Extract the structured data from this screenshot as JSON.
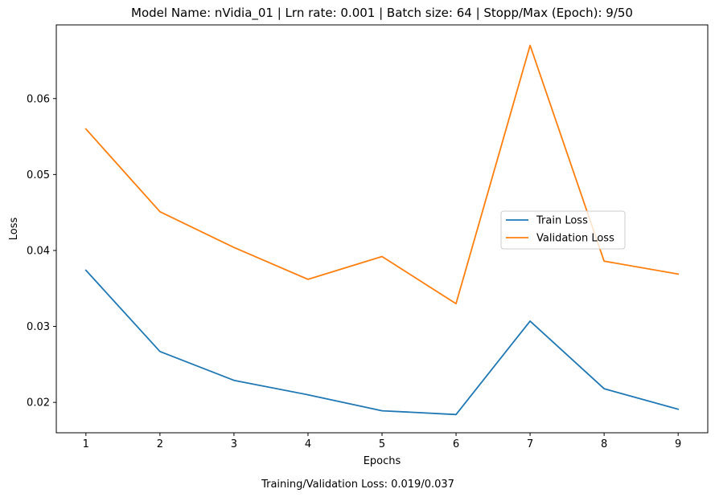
{
  "chart_data": {
    "type": "line",
    "title": "Model Name: nVidia_01 | Lrn rate: 0.001 | Batch size: 64 | Stopp/Max (Epoch): 9/50",
    "xlabel": "Epochs",
    "ylabel": "Loss",
    "footer": "Training/Validation Loss: 0.019/0.037",
    "x": [
      1,
      2,
      3,
      4,
      5,
      6,
      7,
      8,
      9
    ],
    "x_ticks": [
      "1",
      "2",
      "3",
      "4",
      "5",
      "6",
      "7",
      "8",
      "9"
    ],
    "y_ticks": [
      0.02,
      0.03,
      0.04,
      0.05,
      0.06
    ],
    "y_tick_labels": [
      "0.02",
      "0.03",
      "0.04",
      "0.05",
      "0.06"
    ],
    "xlim": [
      0.6,
      9.4
    ],
    "ylim": [
      0.016,
      0.0697
    ],
    "grid": false,
    "legend_position": "center-right",
    "series": [
      {
        "name": "Train Loss",
        "color": "#1f77b4",
        "values": [
          0.0374,
          0.0267,
          0.0229,
          0.021,
          0.0189,
          0.0184,
          0.0307,
          0.0218,
          0.0191
        ]
      },
      {
        "name": "Validation Loss",
        "color": "#ff7f0e",
        "values": [
          0.056,
          0.0451,
          0.0404,
          0.0362,
          0.0392,
          0.033,
          0.067,
          0.0386,
          0.0369
        ]
      }
    ]
  }
}
